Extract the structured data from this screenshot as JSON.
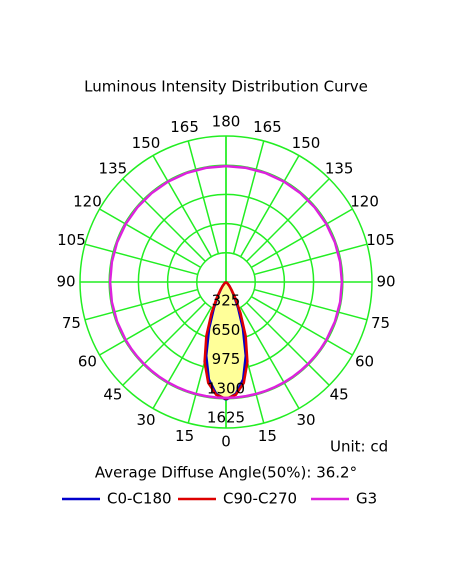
{
  "chart_data": {
    "type": "polar",
    "title": "Luminous Intensity Distribution Curve",
    "unit_label": "Unit: cd",
    "annotation": "Average Diffuse Angle(50%): 36.2°",
    "rlim": [
      0,
      1625
    ],
    "rticks": [
      325,
      650,
      975,
      1300,
      1625
    ],
    "angle_ticks": [
      0,
      15,
      30,
      45,
      60,
      75,
      90,
      105,
      120,
      135,
      150,
      165,
      180
    ],
    "grid": true,
    "grid_color": "#22ee22",
    "fill_color": "#ffff99",
    "x": [
      0,
      5,
      10,
      15,
      20,
      25,
      30,
      35,
      40,
      45,
      50,
      55,
      60,
      70,
      80,
      90,
      100,
      110,
      120,
      130,
      140,
      150,
      160,
      170,
      180
    ],
    "series": [
      {
        "name": "C0-C180",
        "color": "#0000cc",
        "values": [
          1310,
          1250,
          1100,
          850,
          550,
          320,
          180,
          100,
          60,
          30,
          10,
          0,
          0,
          0,
          0,
          0,
          0,
          0,
          0,
          0,
          0,
          0,
          0,
          0,
          0
        ]
      },
      {
        "name": "C90-C270",
        "color": "#dd0000",
        "values": [
          1300,
          1260,
          1140,
          920,
          640,
          380,
          210,
          110,
          60,
          30,
          10,
          0,
          0,
          0,
          0,
          0,
          0,
          0,
          0,
          0,
          0,
          0,
          0,
          0,
          0
        ]
      },
      {
        "name": "G3",
        "color": "#dd22dd",
        "values": [
          1290,
          1290,
          1290,
          1290,
          1290,
          1290,
          1290,
          1290,
          1290,
          1290,
          1290,
          1290,
          1290,
          1290,
          1290,
          1290,
          1290,
          1290,
          1290,
          1290,
          1290,
          1290,
          1290,
          1290,
          1290
        ]
      }
    ]
  }
}
